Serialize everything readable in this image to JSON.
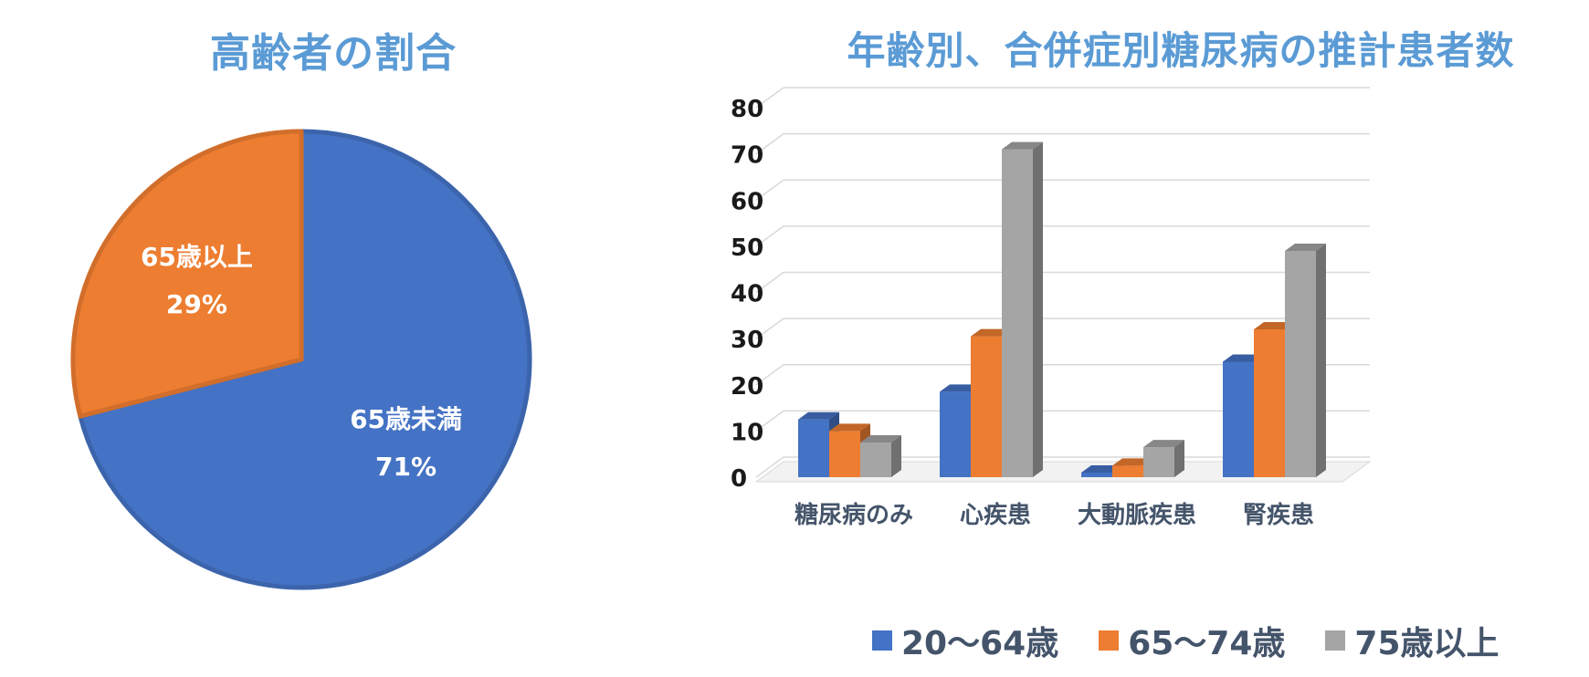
{
  "chart_data": [
    {
      "type": "pie",
      "title": "高齢者の割合",
      "slices": [
        {
          "label": "65歳未満",
          "value": 71,
          "value_label": "71%",
          "color": "#4472c4"
        },
        {
          "label": "65歳以上",
          "value": 29,
          "value_label": "29%",
          "color": "#ed7d31"
        }
      ]
    },
    {
      "type": "bar",
      "title": "年齢別、合併症別糖尿病の推計患者数",
      "categories": [
        "糖尿病のみ",
        "心疾患",
        "大動脈疾患",
        "腎疾患"
      ],
      "series": [
        {
          "name": "20～64歳",
          "values": [
            12.5,
            18.5,
            1,
            25
          ],
          "color": "#4472c4"
        },
        {
          "name": "65～74歳",
          "values": [
            10,
            30.5,
            2.5,
            32
          ],
          "color": "#ed7d31"
        },
        {
          "name": "75歳以上",
          "values": [
            7.5,
            71,
            6.5,
            49
          ],
          "color": "#a5a5a5"
        }
      ],
      "ylim": [
        0,
        80
      ],
      "yticks": [
        0,
        10,
        20,
        30,
        40,
        50,
        60,
        70,
        80
      ],
      "grid": true,
      "legend": "bottom"
    }
  ]
}
